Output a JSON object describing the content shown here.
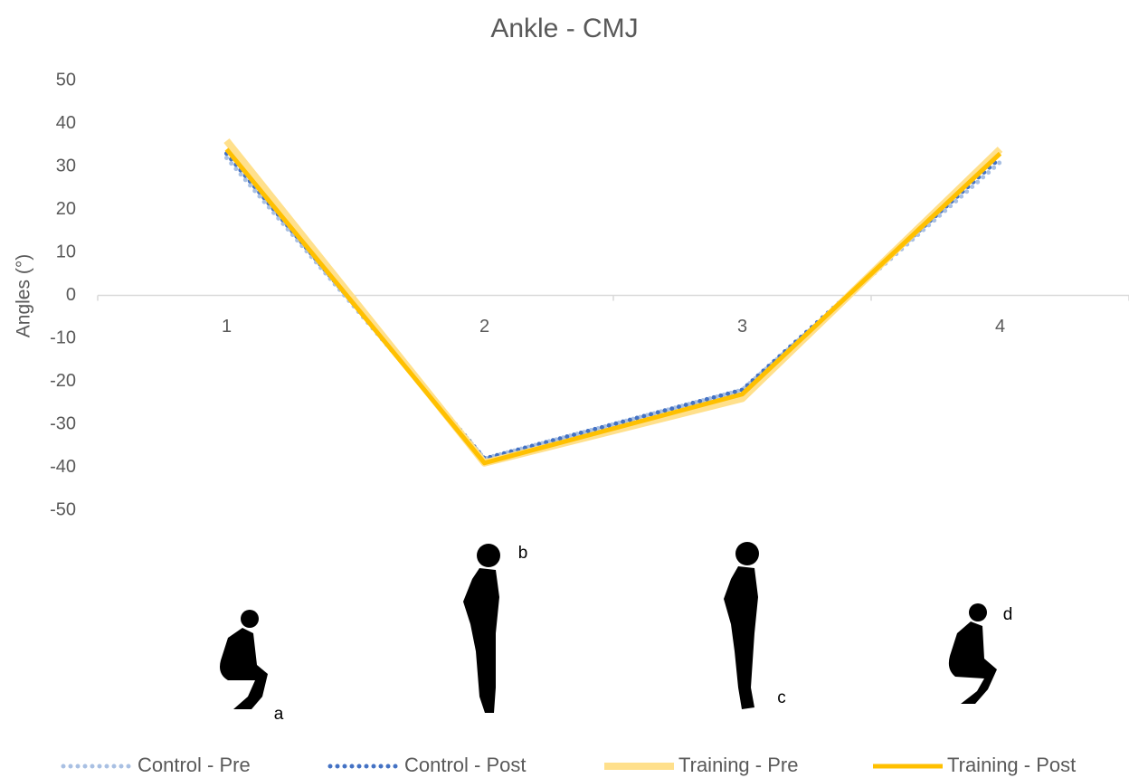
{
  "chart_data": {
    "type": "line",
    "title": "Ankle - CMJ",
    "y_label": "Angles (°)",
    "categories": [
      "1",
      "2",
      "3",
      "4"
    ],
    "series": [
      {
        "name": "Control - Pre",
        "color": "#a9c0e3",
        "style": "dotted",
        "values": [
          32,
          -38,
          -22,
          31
        ]
      },
      {
        "name": "Control - Post",
        "color": "#4472c4",
        "style": "dotted",
        "values": [
          33,
          -38,
          -22,
          32
        ]
      },
      {
        "name": "Training - Pre",
        "color": "#ffe08c",
        "style": "solid",
        "values": [
          36,
          -39,
          -24,
          34
        ]
      },
      {
        "name": "Training - Post",
        "color": "#ffc000",
        "style": "solid",
        "values": [
          34,
          -39,
          -23,
          33
        ]
      }
    ],
    "ylim": [
      -50,
      50
    ],
    "yticks": [
      -50,
      -40,
      -30,
      -20,
      -10,
      0,
      10,
      20,
      30,
      40,
      50
    ],
    "grid": false,
    "legend": "bottom",
    "annotations": [
      "a",
      "b",
      "c",
      "d"
    ]
  }
}
